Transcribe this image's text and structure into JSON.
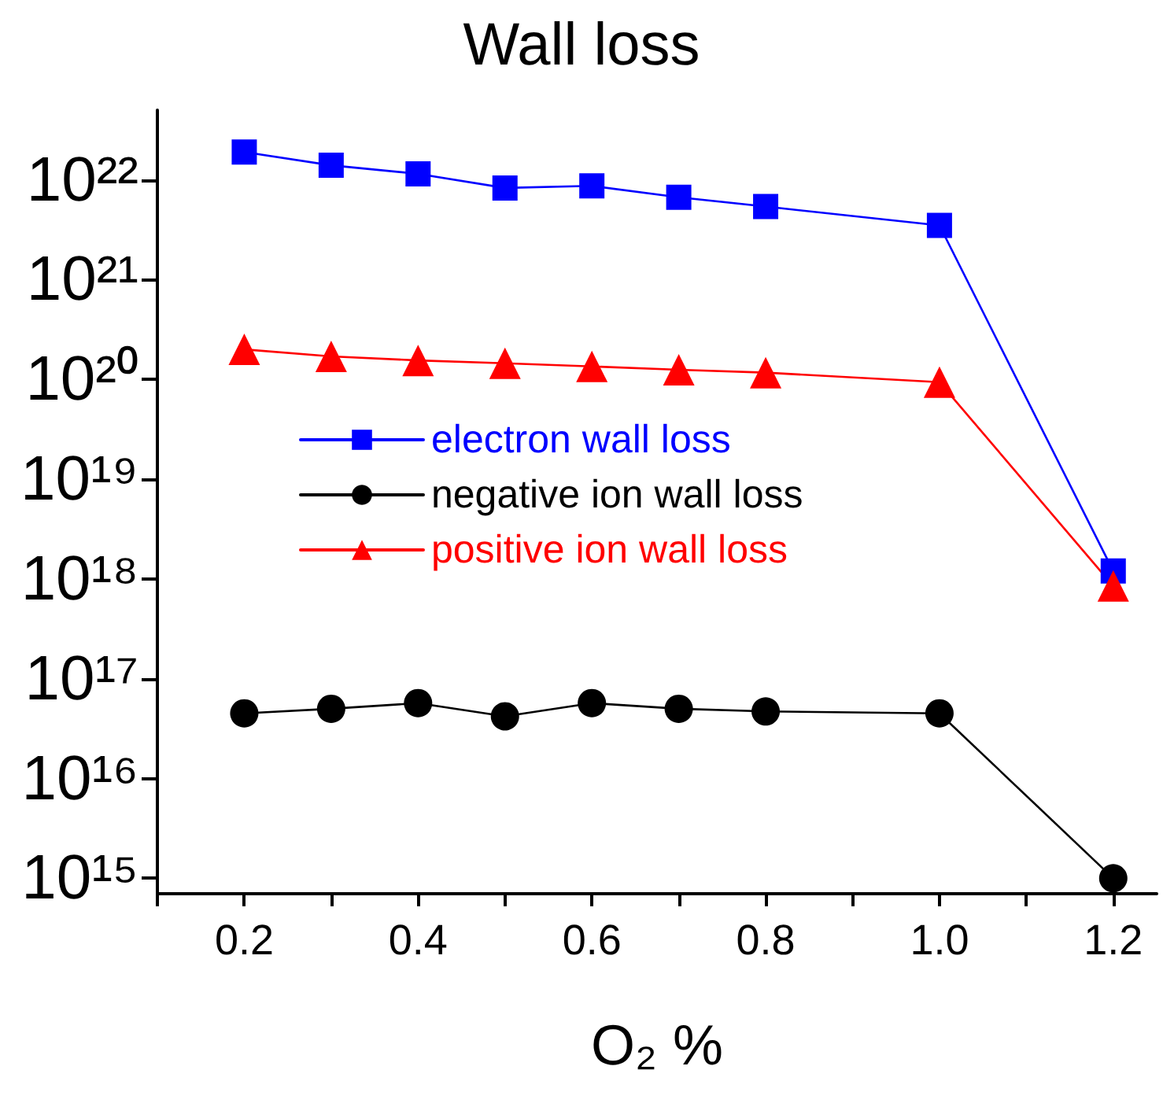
{
  "chart_data": {
    "type": "line",
    "title": "Wall loss",
    "xlabel": "O₂ %",
    "x": [
      0.2,
      0.3,
      0.4,
      0.5,
      0.6,
      0.7,
      0.8,
      1.0,
      1.2
    ],
    "series": [
      {
        "name": "electron wall loss",
        "color": "#0000ff",
        "marker": "square",
        "values": [
          1.9e+22,
          1.4e+22,
          1.15e+22,
          8.3e+21,
          8.7e+21,
          6.7e+21,
          5.4e+21,
          3.5e+21,
          1.2e+18
        ]
      },
      {
        "name": "negative ion wall loss",
        "color": "#000000",
        "marker": "circle",
        "values": [
          4.5e+16,
          5e+16,
          5.7e+16,
          4.2e+16,
          5.7e+16,
          5e+16,
          4.7e+16,
          4.5e+16,
          1000000000000000.0
        ]
      },
      {
        "name": "positive ion wall loss",
        "color": "#ff0000",
        "marker": "triangle",
        "values": [
          2e+20,
          1.7e+20,
          1.55e+20,
          1.45e+20,
          1.35e+20,
          1.25e+20,
          1.17e+20,
          9.4e+19,
          8.5e+17
        ]
      }
    ],
    "log": "y",
    "xlim": [
      0.1,
      1.25
    ],
    "xticks": [
      {
        "value": 0.1,
        "label": null
      },
      0.2,
      {
        "value": 0.3,
        "label": null
      },
      0.4,
      {
        "value": 0.5,
        "label": null
      },
      0.6,
      {
        "value": 0.7,
        "label": null
      },
      0.8,
      {
        "value": 0.9,
        "label": null
      },
      {
        "value": 1.0,
        "label": "1.0"
      },
      {
        "value": 1.1,
        "label": null
      },
      1.2
    ],
    "ylim": [
      700000000000000.0,
      5e+22
    ],
    "yticks": [
      {
        "value": 1000000000000000.0,
        "label": "10¹⁵"
      },
      {
        "value": 1e+16,
        "label": "10¹⁶"
      },
      {
        "value": 1e+17,
        "label": "10¹⁷"
      },
      {
        "value": 1e+18,
        "label": "10¹⁸"
      },
      {
        "value": 1e+19,
        "label": "10¹⁹"
      },
      {
        "value": 1e+20,
        "label": "10²⁰"
      },
      {
        "value": 1e+21,
        "label": "10²¹"
      },
      {
        "value": 1e+22,
        "label": "10²²"
      }
    ],
    "grid": false,
    "legend": "left",
    "line_style": "solid"
  }
}
